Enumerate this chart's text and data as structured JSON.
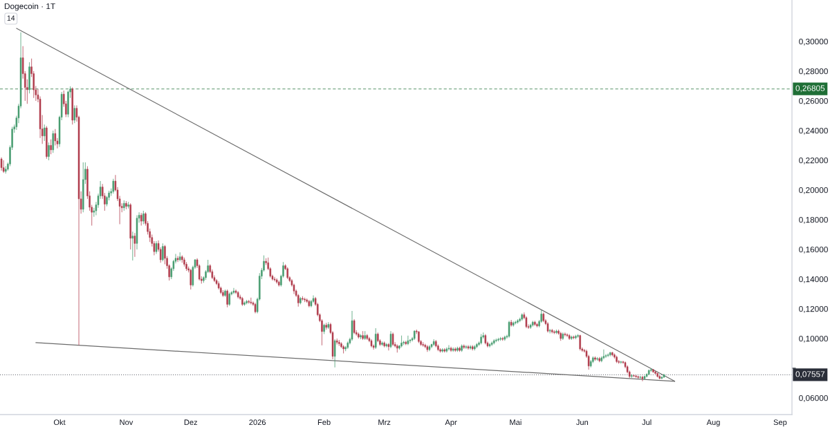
{
  "chart_data": {
    "type": "candlestick",
    "title": "Dogecoin · 1T",
    "annotations": [
      "14"
    ],
    "x": [
      "2025-09-04",
      "2025-09-05",
      "2025-09-06",
      "2025-09-07",
      "2025-09-08",
      "2025-09-09",
      "2025-09-10",
      "2025-09-11",
      "2025-09-12",
      "2025-09-13",
      "2025-09-14",
      "2025-09-15",
      "2025-09-16",
      "2025-09-17",
      "2025-09-18",
      "2025-09-19",
      "2025-09-20",
      "2025-09-21",
      "2025-09-22",
      "2025-09-23",
      "2025-09-24",
      "2025-09-25",
      "2025-09-26",
      "2025-09-27",
      "2025-09-28",
      "2025-09-29",
      "2025-09-30",
      "2025-10-01",
      "2025-10-02",
      "2025-10-03",
      "2025-10-04",
      "2025-10-05",
      "2025-10-06",
      "2025-10-07",
      "2025-10-08",
      "2025-10-09",
      "2025-10-10",
      "2025-10-11",
      "2025-10-12",
      "2025-10-13",
      "2025-10-14",
      "2025-10-15",
      "2025-10-16",
      "2025-10-17",
      "2025-10-18",
      "2025-10-19",
      "2025-10-20",
      "2025-10-21",
      "2025-10-22",
      "2025-10-23",
      "2025-10-24",
      "2025-10-25",
      "2025-10-26",
      "2025-10-27",
      "2025-10-28",
      "2025-10-29",
      "2025-10-30",
      "2025-10-31",
      "2025-11-01",
      "2025-11-02",
      "2025-11-03",
      "2025-11-04",
      "2025-11-05",
      "2025-11-06",
      "2025-11-07",
      "2025-11-08",
      "2025-11-09",
      "2025-11-10",
      "2025-11-11",
      "2025-11-12",
      "2025-11-13",
      "2025-11-14",
      "2025-11-15",
      "2025-11-16",
      "2025-11-17",
      "2025-11-18",
      "2025-11-19",
      "2025-11-20",
      "2025-11-21",
      "2025-11-22",
      "2025-11-23",
      "2025-11-24",
      "2025-11-25",
      "2025-11-26",
      "2025-11-27",
      "2025-11-28",
      "2025-11-29",
      "2025-11-30",
      "2025-12-01",
      "2025-12-02",
      "2025-12-03",
      "2025-12-04",
      "2025-12-05",
      "2025-12-06",
      "2025-12-07",
      "2025-12-08",
      "2025-12-09",
      "2025-12-10",
      "2025-12-11",
      "2025-12-12",
      "2025-12-13",
      "2025-12-14",
      "2025-12-15",
      "2025-12-16",
      "2025-12-17",
      "2025-12-18",
      "2025-12-19",
      "2025-12-20",
      "2025-12-21",
      "2025-12-22",
      "2025-12-23",
      "2025-12-24",
      "2025-12-25",
      "2025-12-26",
      "2025-12-27",
      "2025-12-28",
      "2025-12-29",
      "2025-12-30",
      "2025-12-31",
      "2026-01-01",
      "2026-01-02",
      "2026-01-03",
      "2026-01-04",
      "2026-01-05",
      "2026-01-06",
      "2026-01-07",
      "2026-01-08",
      "2026-01-09",
      "2026-01-10",
      "2026-01-11",
      "2026-01-12",
      "2026-01-13",
      "2026-01-14",
      "2026-01-15",
      "2026-01-16",
      "2026-01-17",
      "2026-01-18",
      "2026-01-19",
      "2026-01-20",
      "2026-01-21",
      "2026-01-22",
      "2026-01-23",
      "2026-01-24",
      "2026-01-25",
      "2026-01-26",
      "2026-01-27",
      "2026-01-28",
      "2026-01-29",
      "2026-01-30",
      "2026-01-31",
      "2026-02-01",
      "2026-02-02",
      "2026-02-03",
      "2026-02-04",
      "2026-02-05",
      "2026-02-06",
      "2026-02-07",
      "2026-02-08",
      "2026-02-09",
      "2026-02-10",
      "2026-02-11",
      "2026-02-12",
      "2026-02-13",
      "2026-02-14",
      "2026-02-15",
      "2026-02-16",
      "2026-02-17",
      "2026-02-18",
      "2026-02-19",
      "2026-02-20",
      "2026-02-21",
      "2026-02-22",
      "2026-02-23",
      "2026-02-24",
      "2026-02-25",
      "2026-02-26",
      "2026-02-27",
      "2026-02-28",
      "2026-03-01",
      "2026-03-02",
      "2026-03-03",
      "2026-03-04",
      "2026-03-05",
      "2026-03-06",
      "2026-03-07",
      "2026-03-08",
      "2026-03-09",
      "2026-03-10",
      "2026-03-11",
      "2026-03-12",
      "2026-03-13",
      "2026-03-14",
      "2026-03-15",
      "2026-03-16",
      "2026-03-17",
      "2026-03-18",
      "2026-03-19",
      "2026-03-20",
      "2026-03-21",
      "2026-03-22",
      "2026-03-23",
      "2026-03-24",
      "2026-03-25",
      "2026-03-26",
      "2026-03-27",
      "2026-03-28",
      "2026-03-29",
      "2026-03-30",
      "2026-03-31",
      "2026-04-01",
      "2026-04-02",
      "2026-04-03",
      "2026-04-04",
      "2026-04-05",
      "2026-04-06",
      "2026-04-07",
      "2026-04-08",
      "2026-04-09",
      "2026-04-10",
      "2026-04-11",
      "2026-04-12",
      "2026-04-13",
      "2026-04-14",
      "2026-04-15",
      "2026-04-16",
      "2026-04-17",
      "2026-04-18",
      "2026-04-19",
      "2026-04-20",
      "2026-04-21",
      "2026-04-22",
      "2026-04-23",
      "2026-04-24",
      "2026-04-25",
      "2026-04-26",
      "2026-04-27",
      "2026-04-28",
      "2026-04-29",
      "2026-04-30",
      "2026-05-01",
      "2026-05-02",
      "2026-05-03",
      "2026-05-04",
      "2026-05-05",
      "2026-05-06",
      "2026-05-07",
      "2026-05-08",
      "2026-05-09",
      "2026-05-10",
      "2026-05-11",
      "2026-05-12",
      "2026-05-13",
      "2026-05-14",
      "2026-05-15",
      "2026-05-16",
      "2026-05-17",
      "2026-05-18",
      "2026-05-19",
      "2026-05-20",
      "2026-05-21",
      "2026-05-22",
      "2026-05-23",
      "2026-05-24",
      "2026-05-25",
      "2026-05-26",
      "2026-05-27",
      "2026-05-28",
      "2026-05-29",
      "2026-05-30",
      "2026-05-31",
      "2026-06-01",
      "2026-06-02",
      "2026-06-03",
      "2026-06-04",
      "2026-06-05",
      "2026-06-06",
      "2026-06-07",
      "2026-06-08",
      "2026-06-09",
      "2026-06-10",
      "2026-06-11",
      "2026-06-12",
      "2026-06-13",
      "2026-06-14",
      "2026-06-15",
      "2026-06-16",
      "2026-06-17",
      "2026-06-18",
      "2026-06-19",
      "2026-06-20",
      "2026-06-21",
      "2026-06-22",
      "2026-06-23",
      "2026-06-24",
      "2026-06-25",
      "2026-06-26",
      "2026-06-27",
      "2026-06-28",
      "2026-06-29",
      "2026-06-30",
      "2026-07-01",
      "2026-07-02",
      "2026-07-03",
      "2026-07-04",
      "2026-07-05",
      "2026-07-06",
      "2026-07-07",
      "2026-07-08",
      "2026-07-09"
    ],
    "ohlc": [
      [
        0.2209,
        0.222,
        0.213,
        0.215
      ],
      [
        0.215,
        0.22,
        0.2115,
        0.2125
      ],
      [
        0.2125,
        0.216,
        0.211,
        0.214
      ],
      [
        0.214,
        0.2185,
        0.213,
        0.2175
      ],
      [
        0.2175,
        0.23,
        0.216,
        0.2287
      ],
      [
        0.2287,
        0.2425,
        0.227,
        0.241
      ],
      [
        0.241,
        0.244,
        0.2385,
        0.2425
      ],
      [
        0.2425,
        0.25,
        0.2405,
        0.2485
      ],
      [
        0.2485,
        0.258,
        0.245,
        0.2565
      ],
      [
        0.2565,
        0.3062,
        0.255,
        0.289
      ],
      [
        0.289,
        0.2968,
        0.275,
        0.2783
      ],
      [
        0.2783,
        0.28,
        0.26,
        0.269
      ],
      [
        0.269,
        0.2745,
        0.258,
        0.2675
      ],
      [
        0.2675,
        0.286,
        0.265,
        0.2829
      ],
      [
        0.2829,
        0.2885,
        0.276,
        0.2783
      ],
      [
        0.2783,
        0.28,
        0.262,
        0.2674
      ],
      [
        0.2674,
        0.27,
        0.26,
        0.264
      ],
      [
        0.264,
        0.268,
        0.259,
        0.2612
      ],
      [
        0.2612,
        0.263,
        0.235,
        0.2411
      ],
      [
        0.2411,
        0.2504,
        0.231,
        0.2364
      ],
      [
        0.2364,
        0.244,
        0.233,
        0.2418
      ],
      [
        0.2418,
        0.243,
        0.221,
        0.2225
      ],
      [
        0.2225,
        0.232,
        0.22,
        0.23
      ],
      [
        0.23,
        0.234,
        0.224,
        0.227
      ],
      [
        0.227,
        0.24,
        0.225,
        0.238
      ],
      [
        0.238,
        0.241,
        0.23,
        0.233
      ],
      [
        0.233,
        0.235,
        0.228,
        0.231
      ],
      [
        0.231,
        0.25,
        0.229,
        0.249
      ],
      [
        0.249,
        0.266,
        0.247,
        0.2645
      ],
      [
        0.2645,
        0.267,
        0.256,
        0.258
      ],
      [
        0.258,
        0.26,
        0.249,
        0.251
      ],
      [
        0.251,
        0.267,
        0.249,
        0.266
      ],
      [
        0.266,
        0.2698,
        0.262,
        0.268
      ],
      [
        0.268,
        0.269,
        0.244,
        0.247
      ],
      [
        0.247,
        0.257,
        0.245,
        0.255
      ],
      [
        0.255,
        0.257,
        0.246,
        0.249
      ],
      [
        0.249,
        0.25,
        0.0955,
        0.194
      ],
      [
        0.194,
        0.199,
        0.184,
        0.187
      ],
      [
        0.187,
        0.2186,
        0.185,
        0.207
      ],
      [
        0.207,
        0.2186,
        0.204,
        0.214
      ],
      [
        0.214,
        0.216,
        0.194,
        0.196
      ],
      [
        0.196,
        0.199,
        0.186,
        0.1884
      ],
      [
        0.1884,
        0.19,
        0.176,
        0.185
      ],
      [
        0.185,
        0.188,
        0.182,
        0.186
      ],
      [
        0.186,
        0.192,
        0.183,
        0.19
      ],
      [
        0.19,
        0.1975,
        0.188,
        0.196
      ],
      [
        0.196,
        0.206,
        0.194,
        0.202
      ],
      [
        0.202,
        0.204,
        0.194,
        0.196
      ],
      [
        0.196,
        0.198,
        0.186,
        0.1905
      ],
      [
        0.1905,
        0.196,
        0.189,
        0.195
      ],
      [
        0.195,
        0.1995,
        0.193,
        0.198
      ],
      [
        0.198,
        0.201,
        0.196,
        0.199
      ],
      [
        0.199,
        0.2075,
        0.1975,
        0.206
      ],
      [
        0.206,
        0.2101,
        0.199,
        0.2
      ],
      [
        0.2,
        0.202,
        0.1925,
        0.194
      ],
      [
        0.194,
        0.196,
        0.177,
        0.189
      ],
      [
        0.189,
        0.191,
        0.185,
        0.188
      ],
      [
        0.188,
        0.193,
        0.186,
        0.191
      ],
      [
        0.191,
        0.1925,
        0.187,
        0.189
      ],
      [
        0.189,
        0.192,
        0.1875,
        0.19
      ],
      [
        0.19,
        0.191,
        0.16,
        0.1675
      ],
      [
        0.1675,
        0.172,
        0.1525,
        0.169
      ],
      [
        0.169,
        0.171,
        0.155,
        0.164
      ],
      [
        0.164,
        0.183,
        0.16,
        0.181
      ],
      [
        0.181,
        0.185,
        0.178,
        0.183
      ],
      [
        0.183,
        0.1845,
        0.176,
        0.179
      ],
      [
        0.179,
        0.186,
        0.177,
        0.184
      ],
      [
        0.184,
        0.185,
        0.176,
        0.1775
      ],
      [
        0.1775,
        0.179,
        0.17,
        0.172
      ],
      [
        0.172,
        0.174,
        0.165,
        0.168
      ],
      [
        0.168,
        0.17,
        0.162,
        0.164
      ],
      [
        0.164,
        0.1655,
        0.156,
        0.1585
      ],
      [
        0.1585,
        0.1655,
        0.157,
        0.164
      ],
      [
        0.164,
        0.166,
        0.1585,
        0.16
      ],
      [
        0.16,
        0.1615,
        0.151,
        0.153
      ],
      [
        0.153,
        0.164,
        0.152,
        0.162
      ],
      [
        0.162,
        0.163,
        0.15,
        0.154
      ],
      [
        0.154,
        0.1555,
        0.147,
        0.149
      ],
      [
        0.149,
        0.15,
        0.139,
        0.1415
      ],
      [
        0.1415,
        0.148,
        0.14,
        0.147
      ],
      [
        0.147,
        0.153,
        0.1455,
        0.152
      ],
      [
        0.152,
        0.157,
        0.1505,
        0.154
      ],
      [
        0.154,
        0.1555,
        0.1515,
        0.153
      ],
      [
        0.153,
        0.158,
        0.152,
        0.155
      ],
      [
        0.155,
        0.156,
        0.151,
        0.153
      ],
      [
        0.153,
        0.1545,
        0.1485,
        0.15
      ],
      [
        0.15,
        0.1515,
        0.1455,
        0.147
      ],
      [
        0.147,
        0.1485,
        0.1445,
        0.146
      ],
      [
        0.146,
        0.147,
        0.133,
        0.136
      ],
      [
        0.136,
        0.149,
        0.135,
        0.148
      ],
      [
        0.148,
        0.1535,
        0.147,
        0.153
      ],
      [
        0.153,
        0.154,
        0.1475,
        0.149
      ],
      [
        0.149,
        0.15,
        0.139,
        0.14
      ],
      [
        0.14,
        0.142,
        0.137,
        0.139
      ],
      [
        0.139,
        0.142,
        0.1375,
        0.141
      ],
      [
        0.141,
        0.146,
        0.1395,
        0.145
      ],
      [
        0.145,
        0.153,
        0.144,
        0.149
      ],
      [
        0.149,
        0.15,
        0.144,
        0.145
      ],
      [
        0.145,
        0.1465,
        0.14,
        0.141
      ],
      [
        0.141,
        0.1425,
        0.138,
        0.139
      ],
      [
        0.139,
        0.14,
        0.136,
        0.137
      ],
      [
        0.137,
        0.1385,
        0.133,
        0.134
      ],
      [
        0.134,
        0.135,
        0.13,
        0.131
      ],
      [
        0.131,
        0.1325,
        0.128,
        0.129
      ],
      [
        0.129,
        0.133,
        0.128,
        0.132
      ],
      [
        0.132,
        0.133,
        0.121,
        0.123
      ],
      [
        0.123,
        0.131,
        0.122,
        0.13
      ],
      [
        0.13,
        0.132,
        0.129,
        0.131
      ],
      [
        0.131,
        0.134,
        0.13,
        0.132
      ],
      [
        0.132,
        0.133,
        0.13,
        0.131
      ],
      [
        0.131,
        0.132,
        0.127,
        0.128
      ],
      [
        0.128,
        0.1295,
        0.126,
        0.127
      ],
      [
        0.127,
        0.128,
        0.122,
        0.123
      ],
      [
        0.123,
        0.125,
        0.122,
        0.124
      ],
      [
        0.124,
        0.126,
        0.123,
        0.125
      ],
      [
        0.125,
        0.126,
        0.1235,
        0.1245
      ],
      [
        0.1245,
        0.1275,
        0.123,
        0.124
      ],
      [
        0.124,
        0.125,
        0.122,
        0.123
      ],
      [
        0.123,
        0.124,
        0.117,
        0.118
      ],
      [
        0.118,
        0.1275,
        0.117,
        0.1265
      ],
      [
        0.1265,
        0.144,
        0.1255,
        0.142
      ],
      [
        0.142,
        0.1475,
        0.14,
        0.146
      ],
      [
        0.146,
        0.156,
        0.145,
        0.152
      ],
      [
        0.152,
        0.154,
        0.1495,
        0.151
      ],
      [
        0.151,
        0.1545,
        0.146,
        0.147
      ],
      [
        0.147,
        0.148,
        0.141,
        0.142
      ],
      [
        0.142,
        0.143,
        0.139,
        0.14
      ],
      [
        0.14,
        0.1415,
        0.1385,
        0.1395
      ],
      [
        0.1395,
        0.1405,
        0.137,
        0.138
      ],
      [
        0.138,
        0.139,
        0.135,
        0.136
      ],
      [
        0.136,
        0.143,
        0.135,
        0.142
      ],
      [
        0.142,
        0.1515,
        0.141,
        0.149
      ],
      [
        0.149,
        0.15,
        0.146,
        0.147
      ],
      [
        0.147,
        0.148,
        0.14,
        0.141
      ],
      [
        0.141,
        0.142,
        0.138,
        0.139
      ],
      [
        0.139,
        0.14,
        0.135,
        0.136
      ],
      [
        0.136,
        0.137,
        0.13,
        0.132
      ],
      [
        0.132,
        0.133,
        0.128,
        0.129
      ],
      [
        0.129,
        0.13,
        0.1215,
        0.124
      ],
      [
        0.124,
        0.128,
        0.123,
        0.127
      ],
      [
        0.127,
        0.1285,
        0.1255,
        0.1265
      ],
      [
        0.1265,
        0.1275,
        0.1245,
        0.126
      ],
      [
        0.126,
        0.127,
        0.124,
        0.125
      ],
      [
        0.125,
        0.126,
        0.121,
        0.122
      ],
      [
        0.122,
        0.126,
        0.121,
        0.125
      ],
      [
        0.125,
        0.129,
        0.124,
        0.127
      ],
      [
        0.127,
        0.128,
        0.122,
        0.123
      ],
      [
        0.123,
        0.124,
        0.115,
        0.116
      ],
      [
        0.116,
        0.117,
        0.111,
        0.112
      ],
      [
        0.112,
        0.113,
        0.0954,
        0.1047
      ],
      [
        0.1047,
        0.11,
        0.103,
        0.109
      ],
      [
        0.109,
        0.1105,
        0.106,
        0.1075
      ],
      [
        0.1075,
        0.111,
        0.1065,
        0.1095
      ],
      [
        0.1095,
        0.1105,
        0.103,
        0.104
      ],
      [
        0.104,
        0.105,
        0.086,
        0.088
      ],
      [
        0.088,
        0.0995,
        0.0806,
        0.0985
      ],
      [
        0.0985,
        0.1,
        0.096,
        0.0975
      ],
      [
        0.0975,
        0.099,
        0.095,
        0.0965
      ],
      [
        0.0965,
        0.0975,
        0.0935,
        0.0945
      ],
      [
        0.0945,
        0.0955,
        0.09,
        0.093
      ],
      [
        0.093,
        0.095,
        0.0915,
        0.094
      ],
      [
        0.094,
        0.098,
        0.093,
        0.097
      ],
      [
        0.097,
        0.1005,
        0.096,
        0.0995
      ],
      [
        0.0995,
        0.1186,
        0.0985,
        0.112
      ],
      [
        0.112,
        0.113,
        0.103,
        0.104
      ],
      [
        0.104,
        0.1055,
        0.102,
        0.103
      ],
      [
        0.103,
        0.104,
        0.1,
        0.101
      ],
      [
        0.101,
        0.103,
        0.0995,
        0.102
      ],
      [
        0.102,
        0.105,
        0.099,
        0.1
      ],
      [
        0.1,
        0.105,
        0.099,
        0.102
      ],
      [
        0.102,
        0.103,
        0.099,
        0.1
      ],
      [
        0.1,
        0.101,
        0.0975,
        0.0985
      ],
      [
        0.0985,
        0.0995,
        0.094,
        0.095
      ],
      [
        0.095,
        0.096,
        0.0925,
        0.094
      ],
      [
        0.094,
        0.107,
        0.093,
        0.103
      ],
      [
        0.103,
        0.104,
        0.0975,
        0.0985
      ],
      [
        0.0985,
        0.0995,
        0.095,
        0.096
      ],
      [
        0.096,
        0.098,
        0.095,
        0.097
      ],
      [
        0.097,
        0.098,
        0.094,
        0.095
      ],
      [
        0.095,
        0.097,
        0.094,
        0.096
      ],
      [
        0.096,
        0.097,
        0.092,
        0.0945
      ],
      [
        0.0945,
        0.105,
        0.0935,
        0.103
      ],
      [
        0.103,
        0.104,
        0.095,
        0.096
      ],
      [
        0.096,
        0.0975,
        0.094,
        0.095
      ],
      [
        0.095,
        0.096,
        0.0905,
        0.0935
      ],
      [
        0.0935,
        0.0955,
        0.0925,
        0.095
      ],
      [
        0.095,
        0.102,
        0.094,
        0.097
      ],
      [
        0.097,
        0.0985,
        0.0955,
        0.0975
      ],
      [
        0.0975,
        0.0985,
        0.0955,
        0.0965
      ],
      [
        0.0965,
        0.102,
        0.0955,
        0.0985
      ],
      [
        0.0985,
        0.0995,
        0.097,
        0.099
      ],
      [
        0.099,
        0.101,
        0.098,
        0.1
      ],
      [
        0.1,
        0.1056,
        0.099,
        0.105
      ],
      [
        0.105,
        0.106,
        0.103,
        0.1045
      ],
      [
        0.1045,
        0.105,
        0.097,
        0.098
      ],
      [
        0.098,
        0.099,
        0.095,
        0.096
      ],
      [
        0.096,
        0.0975,
        0.0945,
        0.0955
      ],
      [
        0.0955,
        0.0965,
        0.0935,
        0.0945
      ],
      [
        0.0945,
        0.0955,
        0.091,
        0.0925
      ],
      [
        0.0925,
        0.0955,
        0.0915,
        0.0945
      ],
      [
        0.0945,
        0.0965,
        0.0935,
        0.096
      ],
      [
        0.096,
        0.0995,
        0.095,
        0.098
      ],
      [
        0.098,
        0.099,
        0.094,
        0.095
      ],
      [
        0.095,
        0.096,
        0.0915,
        0.0925
      ],
      [
        0.0925,
        0.0935,
        0.0905,
        0.0915
      ],
      [
        0.0915,
        0.0935,
        0.0905,
        0.0925
      ],
      [
        0.0925,
        0.0935,
        0.0905,
        0.0915
      ],
      [
        0.0915,
        0.094,
        0.0905,
        0.093
      ],
      [
        0.093,
        0.0955,
        0.092,
        0.0935
      ],
      [
        0.0935,
        0.0945,
        0.091,
        0.092
      ],
      [
        0.092,
        0.094,
        0.091,
        0.093
      ],
      [
        0.093,
        0.094,
        0.091,
        0.092
      ],
      [
        0.092,
        0.0945,
        0.091,
        0.0935
      ],
      [
        0.0935,
        0.0945,
        0.091,
        0.092
      ],
      [
        0.092,
        0.096,
        0.091,
        0.095
      ],
      [
        0.095,
        0.096,
        0.093,
        0.094
      ],
      [
        0.094,
        0.0955,
        0.093,
        0.0945
      ],
      [
        0.0945,
        0.0955,
        0.0925,
        0.0935
      ],
      [
        0.0935,
        0.0955,
        0.0925,
        0.0945
      ],
      [
        0.0945,
        0.0955,
        0.092,
        0.093
      ],
      [
        0.093,
        0.0955,
        0.092,
        0.0945
      ],
      [
        0.0945,
        0.097,
        0.0935,
        0.096
      ],
      [
        0.096,
        0.098,
        0.095,
        0.097
      ],
      [
        0.097,
        0.103,
        0.096,
        0.101
      ],
      [
        0.101,
        0.104,
        0.1,
        0.102
      ],
      [
        0.102,
        0.103,
        0.096,
        0.097
      ],
      [
        0.097,
        0.098,
        0.094,
        0.095
      ],
      [
        0.095,
        0.097,
        0.094,
        0.096
      ],
      [
        0.096,
        0.098,
        0.095,
        0.097
      ],
      [
        0.097,
        0.0995,
        0.096,
        0.0985
      ],
      [
        0.0985,
        0.1,
        0.0975,
        0.099
      ],
      [
        0.099,
        0.1005,
        0.098,
        0.0995
      ],
      [
        0.0995,
        0.101,
        0.0985,
        0.1
      ],
      [
        0.1,
        0.101,
        0.0985,
        0.0995
      ],
      [
        0.0995,
        0.102,
        0.0985,
        0.101
      ],
      [
        0.101,
        0.1025,
        0.1,
        0.1015
      ],
      [
        0.1015,
        0.112,
        0.1005,
        0.111
      ],
      [
        0.111,
        0.1125,
        0.108,
        0.109
      ],
      [
        0.109,
        0.1115,
        0.108,
        0.1105
      ],
      [
        0.1105,
        0.112,
        0.1095,
        0.111
      ],
      [
        0.111,
        0.113,
        0.11,
        0.112
      ],
      [
        0.112,
        0.114,
        0.111,
        0.113
      ],
      [
        0.113,
        0.117,
        0.112,
        0.116
      ],
      [
        0.116,
        0.1175,
        0.113,
        0.114
      ],
      [
        0.114,
        0.115,
        0.107,
        0.108
      ],
      [
        0.108,
        0.1095,
        0.1065,
        0.1075
      ],
      [
        0.1075,
        0.11,
        0.1065,
        0.109
      ],
      [
        0.109,
        0.112,
        0.108,
        0.111
      ],
      [
        0.111,
        0.112,
        0.1085,
        0.1095
      ],
      [
        0.1095,
        0.1105,
        0.1075,
        0.1085
      ],
      [
        0.1085,
        0.1125,
        0.1075,
        0.1115
      ],
      [
        0.1115,
        0.119,
        0.1105,
        0.1165
      ],
      [
        0.1165,
        0.1175,
        0.111,
        0.112
      ],
      [
        0.112,
        0.113,
        0.109,
        0.11
      ],
      [
        0.11,
        0.111,
        0.104,
        0.105
      ],
      [
        0.105,
        0.1065,
        0.1035,
        0.1055
      ],
      [
        0.1055,
        0.1065,
        0.1035,
        0.1045
      ],
      [
        0.1045,
        0.1055,
        0.103,
        0.104
      ],
      [
        0.104,
        0.106,
        0.103,
        0.105
      ],
      [
        0.105,
        0.106,
        0.1025,
        0.1035
      ],
      [
        0.1035,
        0.1045,
        0.0985,
        0.1
      ],
      [
        0.1,
        0.104,
        0.099,
        0.103
      ],
      [
        0.103,
        0.104,
        0.1015,
        0.1025
      ],
      [
        0.1025,
        0.1035,
        0.101,
        0.102
      ],
      [
        0.102,
        0.103,
        0.099,
        0.1
      ],
      [
        0.1,
        0.102,
        0.099,
        0.101
      ],
      [
        0.101,
        0.102,
        0.0995,
        0.1005
      ],
      [
        0.1005,
        0.1025,
        0.0995,
        0.1015
      ],
      [
        0.1015,
        0.103,
        0.1005,
        0.102
      ],
      [
        0.102,
        0.1025,
        0.092,
        0.093
      ],
      [
        0.093,
        0.094,
        0.091,
        0.092
      ],
      [
        0.092,
        0.093,
        0.0905,
        0.0915
      ],
      [
        0.0915,
        0.0925,
        0.087,
        0.088
      ],
      [
        0.088,
        0.089,
        0.079,
        0.0815
      ],
      [
        0.0815,
        0.0855,
        0.0805,
        0.0845
      ],
      [
        0.0845,
        0.088,
        0.0835,
        0.087
      ],
      [
        0.087,
        0.088,
        0.085,
        0.086
      ],
      [
        0.086,
        0.0875,
        0.085,
        0.0865
      ],
      [
        0.0865,
        0.0875,
        0.084,
        0.085
      ],
      [
        0.085,
        0.088,
        0.084,
        0.087
      ],
      [
        0.087,
        0.0926,
        0.086,
        0.088
      ],
      [
        0.088,
        0.0895,
        0.087,
        0.0885
      ],
      [
        0.0885,
        0.09,
        0.0875,
        0.089
      ],
      [
        0.089,
        0.091,
        0.088,
        0.0905
      ],
      [
        0.0905,
        0.091,
        0.088,
        0.089
      ],
      [
        0.089,
        0.09,
        0.0865,
        0.0875
      ],
      [
        0.0875,
        0.0885,
        0.0835,
        0.0845
      ],
      [
        0.0845,
        0.0855,
        0.083,
        0.084
      ],
      [
        0.084,
        0.085,
        0.083,
        0.0843
      ],
      [
        0.0843,
        0.085,
        0.083,
        0.0838
      ],
      [
        0.0838,
        0.0845,
        0.08,
        0.081
      ],
      [
        0.081,
        0.082,
        0.0765,
        0.0775
      ],
      [
        0.0775,
        0.0785,
        0.0735,
        0.0745
      ],
      [
        0.0745,
        0.076,
        0.0735,
        0.075
      ],
      [
        0.075,
        0.0758,
        0.074,
        0.0748
      ],
      [
        0.0748,
        0.0755,
        0.0735,
        0.0743
      ],
      [
        0.0743,
        0.075,
        0.073,
        0.0738
      ],
      [
        0.0738,
        0.0748,
        0.073,
        0.074
      ],
      [
        0.074,
        0.0748,
        0.0712,
        0.073
      ],
      [
        0.073,
        0.075,
        0.0722,
        0.0745
      ],
      [
        0.0745,
        0.0765,
        0.0738,
        0.076
      ],
      [
        0.076,
        0.0792,
        0.0755,
        0.0785
      ],
      [
        0.0785,
        0.08,
        0.0775,
        0.079
      ],
      [
        0.079,
        0.0795,
        0.077,
        0.0775
      ],
      [
        0.0775,
        0.0782,
        0.076,
        0.0765
      ],
      [
        0.0765,
        0.077,
        0.0738,
        0.0745
      ],
      [
        0.0745,
        0.0752,
        0.0725,
        0.0732
      ],
      [
        0.0732,
        0.0745,
        0.0726,
        0.074
      ],
      [
        0.074,
        0.0762,
        0.0735,
        0.07557
      ]
    ],
    "colors": [
      "#b03a4b",
      "#b03a4b",
      "#459b6e",
      "#459b6e",
      "#459b6e",
      "#459b6e",
      "#459b6e",
      "#459b6e",
      "#459b6e",
      "#459b6e",
      "#b03a4b",
      "#b03a4b",
      "#b03a4b",
      "#459b6e",
      "#b03a4b",
      "#b03a4b",
      "#b03a4b",
      "#b03a4b",
      "#b03a4b",
      "#b03a4b",
      "#459b6e",
      "#b03a4b",
      "#459b6e",
      "#b03a4b",
      "#459b6e",
      "#b03a4b",
      "#b03a4b",
      "#459b6e",
      "#459b6e",
      "#b03a4b",
      "#b03a4b",
      "#459b6e",
      "#459b6e",
      "#b03a4b",
      "#459b6e",
      "#b03a4b",
      "#b03a4b",
      "#b03a4b",
      "#459b6e",
      "#459b6e",
      "#b03a4b",
      "#b03a4b",
      "#b03a4b",
      "#459b6e",
      "#459b6e",
      "#459b6e",
      "#459b6e",
      "#b03a4b",
      "#b03a4b",
      "#459b6e",
      "#459b6e",
      "#459b6e",
      "#459b6e",
      "#b03a4b",
      "#b03a4b",
      "#b03a4b",
      "#b03a4b",
      "#459b6e",
      "#b03a4b",
      "#459b6e",
      "#b03a4b",
      "#459b6e",
      "#b03a4b",
      "#459b6e",
      "#459b6e",
      "#b03a4b",
      "#459b6e",
      "#b03a4b",
      "#b03a4b",
      "#b03a4b",
      "#b03a4b",
      "#b03a4b",
      "#459b6e",
      "#b03a4b",
      "#b03a4b",
      "#459b6e",
      "#b03a4b",
      "#b03a4b",
      "#b03a4b",
      "#459b6e",
      "#459b6e",
      "#459b6e",
      "#b03a4b",
      "#459b6e",
      "#b03a4b",
      "#b03a4b",
      "#b03a4b",
      "#b03a4b",
      "#b03a4b",
      "#459b6e",
      "#459b6e",
      "#b03a4b",
      "#b03a4b",
      "#b03a4b",
      "#459b6e",
      "#459b6e",
      "#459b6e",
      "#b03a4b",
      "#b03a4b",
      "#b03a4b",
      "#b03a4b",
      "#b03a4b",
      "#b03a4b",
      "#b03a4b",
      "#459b6e",
      "#b03a4b",
      "#459b6e",
      "#459b6e",
      "#459b6e",
      "#b03a4b",
      "#b03a4b",
      "#b03a4b",
      "#b03a4b",
      "#459b6e",
      "#459b6e",
      "#b03a4b",
      "#b03a4b",
      "#b03a4b",
      "#b03a4b",
      "#459b6e",
      "#459b6e",
      "#459b6e",
      "#459b6e",
      "#b03a4b",
      "#b03a4b",
      "#b03a4b",
      "#b03a4b",
      "#b03a4b",
      "#b03a4b",
      "#b03a4b",
      "#459b6e",
      "#459b6e",
      "#b03a4b",
      "#b03a4b",
      "#b03a4b",
      "#b03a4b",
      "#b03a4b",
      "#b03a4b",
      "#b03a4b",
      "#459b6e",
      "#b03a4b",
      "#b03a4b",
      "#b03a4b",
      "#b03a4b",
      "#459b6e",
      "#459b6e",
      "#b03a4b",
      "#b03a4b",
      "#b03a4b",
      "#b03a4b",
      "#459b6e",
      "#b03a4b",
      "#459b6e",
      "#b03a4b",
      "#b03a4b",
      "#459b6e",
      "#b03a4b",
      "#b03a4b",
      "#b03a4b",
      "#b03a4b",
      "#459b6e",
      "#459b6e",
      "#459b6e",
      "#459b6e",
      "#b03a4b",
      "#b03a4b",
      "#b03a4b",
      "#459b6e",
      "#b03a4b",
      "#459b6e",
      "#b03a4b",
      "#b03a4b",
      "#b03a4b",
      "#b03a4b",
      "#459b6e",
      "#b03a4b",
      "#b03a4b",
      "#459b6e",
      "#b03a4b",
      "#459b6e",
      "#b03a4b",
      "#459b6e",
      "#b03a4b",
      "#b03a4b",
      "#b03a4b",
      "#459b6e",
      "#459b6e",
      "#459b6e",
      "#b03a4b",
      "#459b6e",
      "#459b6e",
      "#459b6e",
      "#459b6e",
      "#b03a4b",
      "#b03a4b",
      "#b03a4b",
      "#b03a4b",
      "#b03a4b",
      "#b03a4b",
      "#459b6e",
      "#459b6e",
      "#459b6e",
      "#b03a4b",
      "#b03a4b",
      "#b03a4b",
      "#459b6e",
      "#b03a4b",
      "#459b6e",
      "#459b6e",
      "#b03a4b",
      "#459b6e",
      "#b03a4b",
      "#459b6e",
      "#b03a4b",
      "#459b6e",
      "#b03a4b",
      "#459b6e",
      "#b03a4b",
      "#459b6e",
      "#b03a4b",
      "#459b6e",
      "#459b6e",
      "#459b6e",
      "#459b6e",
      "#459b6e",
      "#b03a4b",
      "#b03a4b",
      "#459b6e",
      "#459b6e",
      "#459b6e",
      "#459b6e",
      "#459b6e",
      "#459b6e",
      "#b03a4b",
      "#459b6e",
      "#459b6e",
      "#459b6e",
      "#b03a4b",
      "#459b6e",
      "#459b6e",
      "#459b6e",
      "#459b6e",
      "#459b6e",
      "#b03a4b",
      "#b03a4b",
      "#b03a4b",
      "#459b6e",
      "#459b6e",
      "#b03a4b",
      "#b03a4b",
      "#459b6e",
      "#459b6e",
      "#b03a4b",
      "#b03a4b",
      "#b03a4b",
      "#459b6e",
      "#b03a4b",
      "#b03a4b",
      "#459b6e",
      "#b03a4b",
      "#b03a4b",
      "#459b6e",
      "#b03a4b",
      "#b03a4b",
      "#b03a4b",
      "#459b6e",
      "#b03a4b",
      "#459b6e",
      "#459b6e",
      "#b03a4b",
      "#b03a4b",
      "#b03a4b",
      "#b03a4b",
      "#b03a4b",
      "#459b6e",
      "#459b6e",
      "#b03a4b",
      "#459b6e",
      "#b03a4b",
      "#459b6e",
      "#459b6e",
      "#459b6e",
      "#459b6e",
      "#459b6e",
      "#b03a4b",
      "#b03a4b",
      "#b03a4b",
      "#b03a4b",
      "#459b6e",
      "#b03a4b",
      "#b03a4b",
      "#b03a4b",
      "#b03a4b",
      "#459b6e",
      "#b03a4b",
      "#b03a4b",
      "#b03a4b",
      "#459b6e",
      "#b03a4b",
      "#459b6e",
      "#459b6e",
      "#459b6e",
      "#459b6e",
      "#b03a4b",
      "#b03a4b",
      "#b03a4b",
      "#b03a4b",
      "#459b6e",
      "#459b6e"
    ],
    "series": [
      {
        "type": "line",
        "color": "#6a6a6a",
        "x": [
          "2025-09-11",
          "2026-07-14"
        ],
        "values": [
          0.3088,
          0.0712
        ]
      },
      {
        "type": "line",
        "color": "#6a6a6a",
        "x": [
          "2025-09-20",
          "2026-07-14"
        ],
        "values": [
          0.0972,
          0.0712
        ]
      }
    ],
    "ref_lines": [
      {
        "axis": "y",
        "value": 0.26805,
        "label": "0,26805",
        "color": "#1f6f36",
        "line_style": "dashed"
      },
      {
        "axis": "y",
        "value": 0.07557,
        "label": "0,07557",
        "color": "#2a2e39",
        "line_style": "dotted"
      }
    ],
    "xlim": [
      "2025-09-03T08:00",
      "2026-09-06T12:00"
    ],
    "xticks": [
      {
        "value": "2025-10-01",
        "label": "Okt"
      },
      {
        "value": "2025-11-01",
        "label": "Nov"
      },
      {
        "value": "2025-12-01",
        "label": "Dez"
      },
      {
        "value": "2026-01-01",
        "label": "2026"
      },
      {
        "value": "2026-02-01",
        "label": "Feb"
      },
      {
        "value": "2026-03-01",
        "label": "Mrz"
      },
      {
        "value": "2026-04-01",
        "label": "Apr"
      },
      {
        "value": "2026-05-01",
        "label": "Mai"
      },
      {
        "value": "2026-06-01",
        "label": "Jun"
      },
      {
        "value": "2026-07-01",
        "label": "Jul"
      },
      {
        "value": "2026-08-01",
        "label": "Aug"
      },
      {
        "value": "2026-09-01",
        "label": "Sep"
      }
    ],
    "ylim": [
      0.0488,
      0.3279
    ],
    "yticks": [
      {
        "value": 0.06,
        "label": "0,06000"
      },
      {
        "value": 0.08,
        "label": null
      },
      {
        "value": 0.1,
        "label": "0,10000"
      },
      {
        "value": 0.12,
        "label": "0,12000"
      },
      {
        "value": 0.14,
        "label": "0,14000"
      },
      {
        "value": 0.16,
        "label": "0,16000"
      },
      {
        "value": 0.18,
        "label": "0,18000"
      },
      {
        "value": 0.2,
        "label": "0,20000"
      },
      {
        "value": 0.22,
        "label": "0,22000"
      },
      {
        "value": 0.24,
        "label": "0,24000"
      },
      {
        "value": 0.26,
        "label": "0,26000"
      },
      {
        "value": 0.28,
        "label": "0,28000"
      },
      {
        "value": 0.3,
        "label": "0,30000"
      }
    ]
  }
}
